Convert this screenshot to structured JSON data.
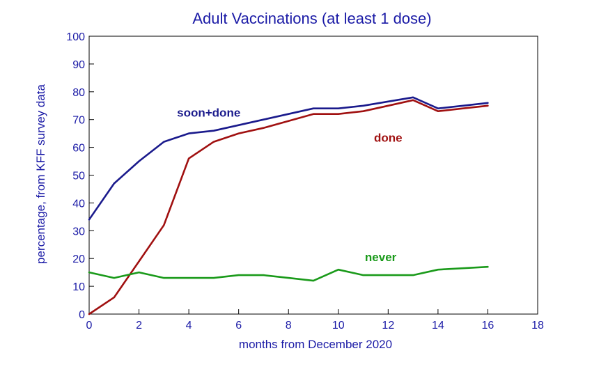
{
  "chart_data": {
    "type": "line",
    "title": "Adult Vaccinations (at least 1 dose)",
    "xlabel": "months from December 2020",
    "ylabel": "percentage, from KFF survey data",
    "xlim": [
      0,
      18
    ],
    "ylim": [
      0,
      100
    ],
    "x_ticks": [
      0,
      2,
      4,
      6,
      8,
      10,
      12,
      14,
      16,
      18
    ],
    "y_ticks": [
      0,
      10,
      20,
      30,
      40,
      50,
      60,
      70,
      80,
      90,
      100
    ],
    "grid": false,
    "series": [
      {
        "name": "soon+done",
        "color": "#1a1a8c",
        "x": [
          0,
          1,
          2,
          3,
          4,
          5,
          6,
          7,
          8,
          9,
          10,
          11,
          12,
          13,
          14,
          15,
          16
        ],
        "y": [
          34,
          47,
          55,
          62,
          65,
          66,
          68,
          70,
          72,
          74,
          74,
          75,
          76.5,
          78,
          74,
          75,
          76
        ]
      },
      {
        "name": "done",
        "color": "#a01010",
        "x": [
          0,
          1,
          2,
          3,
          4,
          5,
          6,
          7,
          8,
          9,
          10,
          11,
          12,
          13,
          14,
          15,
          16
        ],
        "y": [
          0,
          6,
          19,
          32,
          56,
          62,
          65,
          67,
          69.5,
          72,
          72,
          73,
          75,
          77,
          73,
          74,
          75
        ]
      },
      {
        "name": "never",
        "color": "#1a9a1a",
        "x": [
          0,
          1,
          2,
          3,
          4,
          5,
          6,
          7,
          8,
          9,
          10,
          11,
          12,
          13,
          14,
          15,
          16
        ],
        "y": [
          15,
          13,
          15,
          13,
          13,
          13,
          14,
          14,
          13,
          12,
          16,
          14,
          14,
          14,
          16,
          16.5,
          17
        ]
      }
    ]
  }
}
